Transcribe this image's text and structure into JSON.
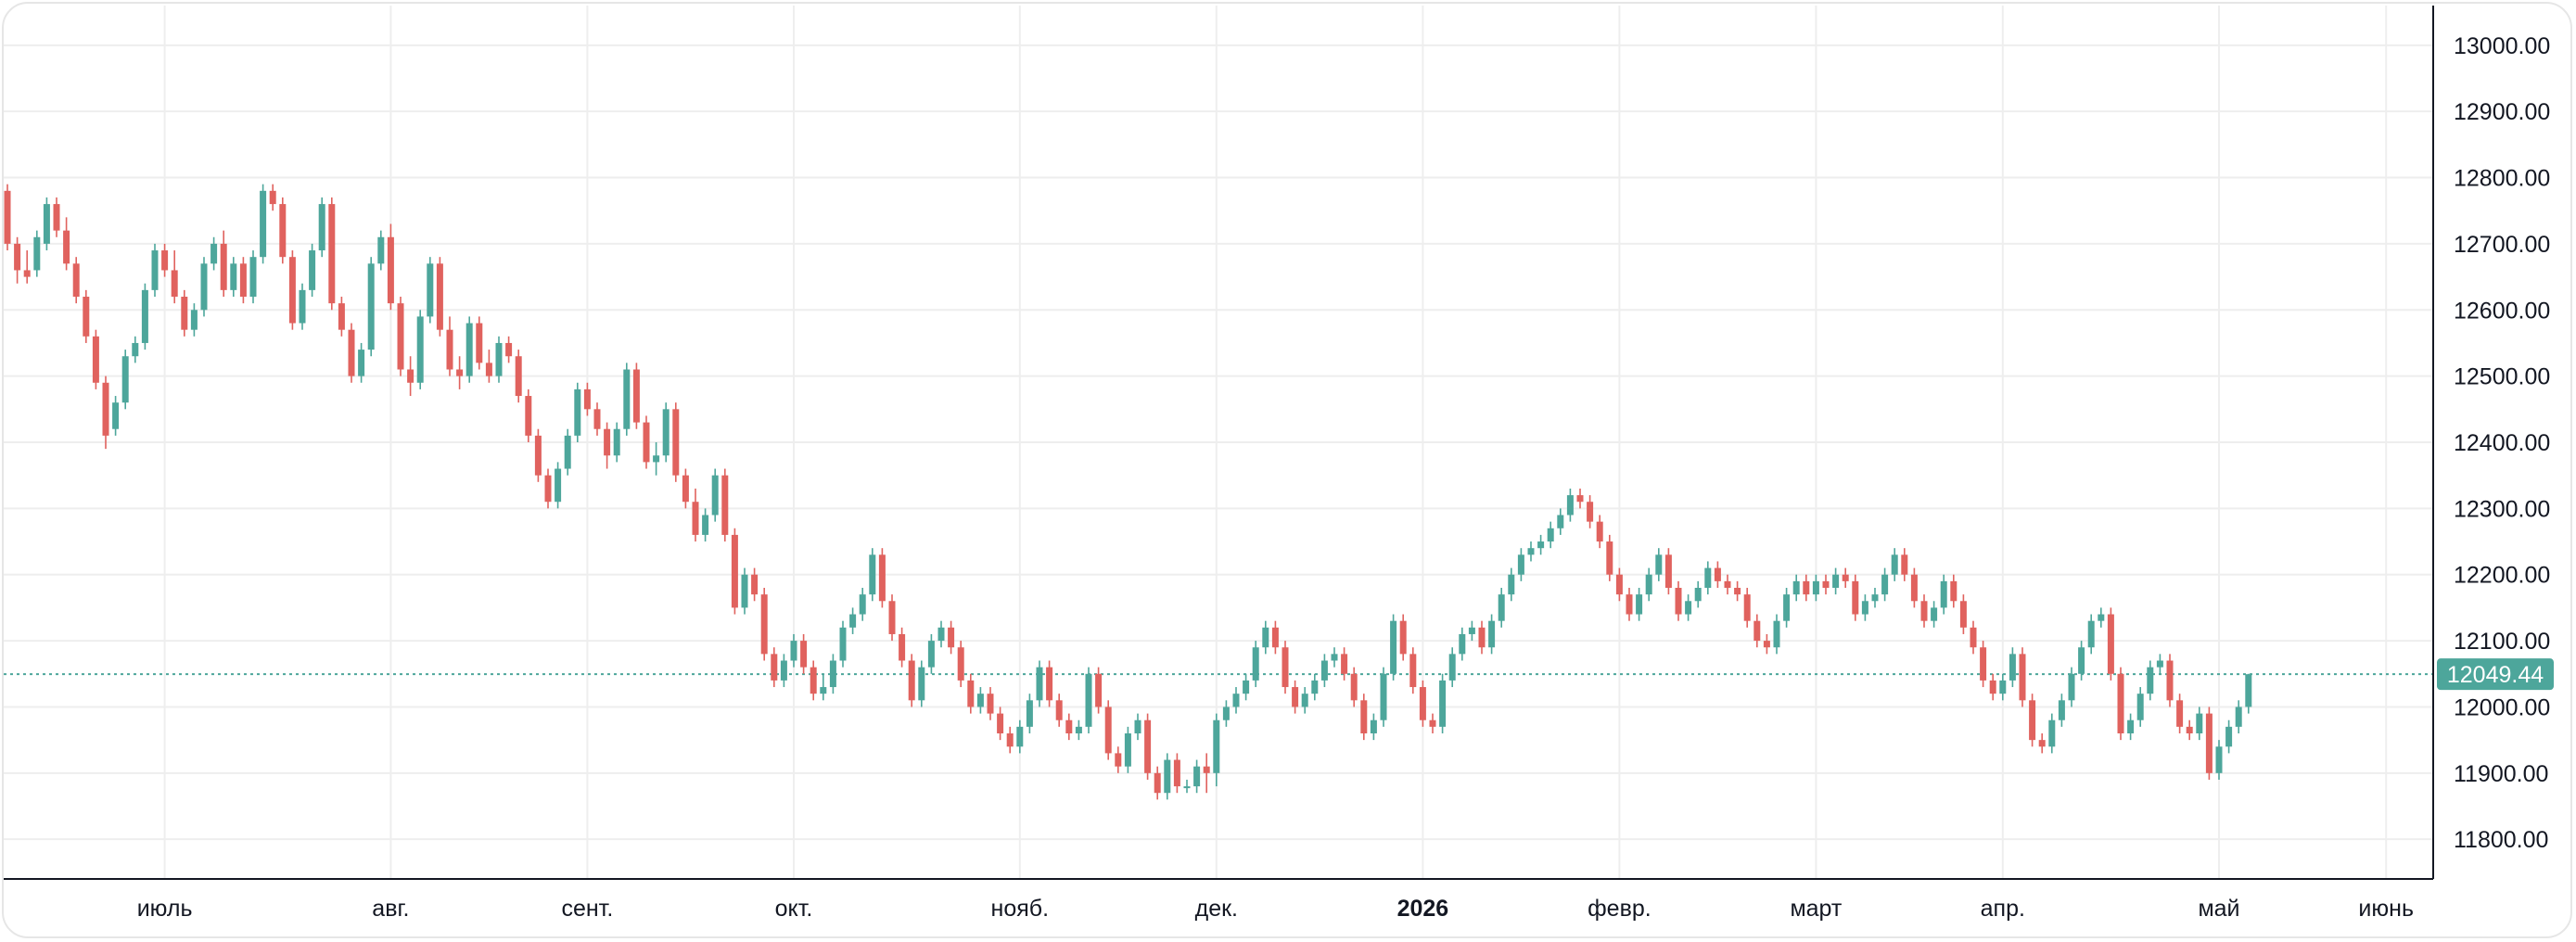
{
  "chart_data": {
    "type": "candlestick",
    "ylim": [
      11740,
      13060
    ],
    "y_ticks": [
      "13000.00",
      "12900.00",
      "12800.00",
      "12700.00",
      "12600.00",
      "12500.00",
      "12400.00",
      "12300.00",
      "12200.00",
      "12100.00",
      "12000.00",
      "11900.00",
      "11800.00"
    ],
    "y_tick_values": [
      13000,
      12900,
      12800,
      12700,
      12600,
      12500,
      12400,
      12300,
      12200,
      12100,
      12000,
      11900,
      11800
    ],
    "x_tick_labels": [
      "июль",
      "авг.",
      "сент.",
      "окт.",
      "нояб.",
      "дек.",
      "2026",
      "февр.",
      "март",
      "апр.",
      "май",
      "июнь"
    ],
    "x_tick_index": [
      16,
      39,
      59,
      80,
      103,
      123,
      144,
      164,
      184,
      203,
      225,
      242
    ],
    "bold_tick": "2026",
    "last_price": 12049.44,
    "last_price_label": "12049.44",
    "grid": true,
    "colors": {
      "up": "#4da69b",
      "down": "#e0625e",
      "grid": "#eeeeee",
      "axis": "#131722",
      "price_line": "#4da69b"
    },
    "ohlc": [
      [
        12780,
        12790,
        12690,
        12700
      ],
      [
        12700,
        12710,
        12640,
        12660
      ],
      [
        12660,
        12690,
        12640,
        12650
      ],
      [
        12660,
        12720,
        12650,
        12710
      ],
      [
        12700,
        12770,
        12690,
        12760
      ],
      [
        12760,
        12770,
        12710,
        12720
      ],
      [
        12720,
        12740,
        12660,
        12670
      ],
      [
        12670,
        12680,
        12610,
        12620
      ],
      [
        12620,
        12630,
        12550,
        12560
      ],
      [
        12560,
        12570,
        12480,
        12490
      ],
      [
        12490,
        12500,
        12390,
        12410
      ],
      [
        12420,
        12470,
        12410,
        12460
      ],
      [
        12460,
        12540,
        12450,
        12530
      ],
      [
        12530,
        12560,
        12520,
        12550
      ],
      [
        12550,
        12640,
        12540,
        12630
      ],
      [
        12630,
        12700,
        12620,
        12690
      ],
      [
        12690,
        12700,
        12650,
        12660
      ],
      [
        12660,
        12690,
        12610,
        12620
      ],
      [
        12620,
        12630,
        12560,
        12570
      ],
      [
        12570,
        12610,
        12560,
        12600
      ],
      [
        12600,
        12680,
        12590,
        12670
      ],
      [
        12670,
        12710,
        12660,
        12700
      ],
      [
        12700,
        12720,
        12620,
        12630
      ],
      [
        12630,
        12680,
        12620,
        12670
      ],
      [
        12670,
        12680,
        12610,
        12620
      ],
      [
        12620,
        12690,
        12610,
        12680
      ],
      [
        12680,
        12790,
        12670,
        12780
      ],
      [
        12780,
        12790,
        12750,
        12760
      ],
      [
        12760,
        12770,
        12670,
        12680
      ],
      [
        12680,
        12690,
        12570,
        12580
      ],
      [
        12580,
        12640,
        12570,
        12630
      ],
      [
        12630,
        12700,
        12620,
        12690
      ],
      [
        12690,
        12770,
        12680,
        12760
      ],
      [
        12760,
        12770,
        12600,
        12610
      ],
      [
        12610,
        12620,
        12560,
        12570
      ],
      [
        12570,
        12580,
        12490,
        12500
      ],
      [
        12500,
        12550,
        12490,
        12540
      ],
      [
        12540,
        12680,
        12530,
        12670
      ],
      [
        12670,
        12720,
        12660,
        12710
      ],
      [
        12710,
        12730,
        12600,
        12610
      ],
      [
        12610,
        12620,
        12500,
        12510
      ],
      [
        12510,
        12530,
        12470,
        12490
      ],
      [
        12490,
        12600,
        12480,
        12590
      ],
      [
        12590,
        12680,
        12580,
        12670
      ],
      [
        12670,
        12680,
        12560,
        12570
      ],
      [
        12570,
        12590,
        12500,
        12510
      ],
      [
        12510,
        12530,
        12480,
        12500
      ],
      [
        12500,
        12590,
        12490,
        12580
      ],
      [
        12580,
        12590,
        12510,
        12520
      ],
      [
        12520,
        12540,
        12490,
        12500
      ],
      [
        12500,
        12560,
        12490,
        12550
      ],
      [
        12550,
        12560,
        12520,
        12530
      ],
      [
        12530,
        12540,
        12460,
        12470
      ],
      [
        12470,
        12480,
        12400,
        12410
      ],
      [
        12410,
        12420,
        12340,
        12350
      ],
      [
        12350,
        12360,
        12300,
        12310
      ],
      [
        12310,
        12370,
        12300,
        12360
      ],
      [
        12360,
        12420,
        12350,
        12410
      ],
      [
        12410,
        12490,
        12400,
        12480
      ],
      [
        12480,
        12490,
        12440,
        12450
      ],
      [
        12450,
        12460,
        12410,
        12420
      ],
      [
        12420,
        12430,
        12360,
        12380
      ],
      [
        12380,
        12430,
        12370,
        12420
      ],
      [
        12420,
        12520,
        12410,
        12510
      ],
      [
        12510,
        12520,
        12420,
        12430
      ],
      [
        12430,
        12440,
        12360,
        12370
      ],
      [
        12370,
        12400,
        12350,
        12380
      ],
      [
        12380,
        12460,
        12370,
        12450
      ],
      [
        12450,
        12460,
        12340,
        12350
      ],
      [
        12350,
        12360,
        12300,
        12310
      ],
      [
        12310,
        12330,
        12250,
        12260
      ],
      [
        12260,
        12300,
        12250,
        12290
      ],
      [
        12290,
        12360,
        12280,
        12350
      ],
      [
        12350,
        12360,
        12250,
        12260
      ],
      [
        12260,
        12270,
        12140,
        12150
      ],
      [
        12150,
        12210,
        12140,
        12200
      ],
      [
        12200,
        12210,
        12160,
        12170
      ],
      [
        12170,
        12180,
        12070,
        12080
      ],
      [
        12080,
        12090,
        12030,
        12040
      ],
      [
        12040,
        12080,
        12030,
        12070
      ],
      [
        12070,
        12110,
        12060,
        12100
      ],
      [
        12100,
        12110,
        12050,
        12060
      ],
      [
        12060,
        12070,
        12010,
        12020
      ],
      [
        12020,
        12050,
        12010,
        12030
      ],
      [
        12030,
        12080,
        12020,
        12070
      ],
      [
        12070,
        12130,
        12060,
        12120
      ],
      [
        12120,
        12150,
        12110,
        12140
      ],
      [
        12140,
        12180,
        12130,
        12170
      ],
      [
        12170,
        12240,
        12160,
        12230
      ],
      [
        12230,
        12240,
        12150,
        12160
      ],
      [
        12160,
        12170,
        12100,
        12110
      ],
      [
        12110,
        12120,
        12060,
        12070
      ],
      [
        12070,
        12080,
        12000,
        12010
      ],
      [
        12010,
        12070,
        12000,
        12060
      ],
      [
        12060,
        12110,
        12050,
        12100
      ],
      [
        12100,
        12130,
        12090,
        12120
      ],
      [
        12120,
        12130,
        12080,
        12090
      ],
      [
        12090,
        12100,
        12030,
        12040
      ],
      [
        12040,
        12050,
        11990,
        12000
      ],
      [
        12000,
        12030,
        11990,
        12020
      ],
      [
        12020,
        12030,
        11980,
        11990
      ],
      [
        11990,
        12000,
        11950,
        11960
      ],
      [
        11960,
        11970,
        11930,
        11940
      ],
      [
        11940,
        11980,
        11930,
        11970
      ],
      [
        11970,
        12020,
        11960,
        12010
      ],
      [
        12010,
        12070,
        12000,
        12060
      ],
      [
        12060,
        12070,
        12000,
        12010
      ],
      [
        12010,
        12020,
        11970,
        11980
      ],
      [
        11980,
        11990,
        11950,
        11960
      ],
      [
        11960,
        11980,
        11950,
        11970
      ],
      [
        11970,
        12060,
        11960,
        12050
      ],
      [
        12050,
        12060,
        11990,
        12000
      ],
      [
        12000,
        12010,
        11920,
        11930
      ],
      [
        11930,
        11940,
        11900,
        11910
      ],
      [
        11910,
        11970,
        11900,
        11960
      ],
      [
        11960,
        11990,
        11950,
        11980
      ],
      [
        11980,
        11990,
        11890,
        11900
      ],
      [
        11900,
        11910,
        11860,
        11870
      ],
      [
        11870,
        11930,
        11860,
        11920
      ],
      [
        11920,
        11930,
        11870,
        11880
      ],
      [
        11880,
        11890,
        11870,
        11880
      ],
      [
        11880,
        11920,
        11870,
        11910
      ],
      [
        11910,
        11930,
        11870,
        11900
      ],
      [
        11900,
        11990,
        11880,
        11980
      ],
      [
        11980,
        12010,
        11970,
        12000
      ],
      [
        12000,
        12030,
        11990,
        12020
      ],
      [
        12020,
        12050,
        12010,
        12040
      ],
      [
        12040,
        12100,
        12030,
        12090
      ],
      [
        12090,
        12130,
        12080,
        12120
      ],
      [
        12120,
        12130,
        12080,
        12090
      ],
      [
        12090,
        12100,
        12020,
        12030
      ],
      [
        12030,
        12040,
        11990,
        12000
      ],
      [
        12000,
        12030,
        11990,
        12020
      ],
      [
        12020,
        12050,
        12010,
        12040
      ],
      [
        12040,
        12080,
        12030,
        12070
      ],
      [
        12070,
        12090,
        12060,
        12080
      ],
      [
        12080,
        12090,
        12040,
        12050
      ],
      [
        12050,
        12060,
        12000,
        12010
      ],
      [
        12010,
        12020,
        11950,
        11960
      ],
      [
        11960,
        11990,
        11950,
        11980
      ],
      [
        11980,
        12060,
        11970,
        12050
      ],
      [
        12050,
        12140,
        12040,
        12130
      ],
      [
        12130,
        12140,
        12070,
        12080
      ],
      [
        12080,
        12090,
        12020,
        12030
      ],
      [
        12030,
        12040,
        11970,
        11980
      ],
      [
        11980,
        11990,
        11960,
        11970
      ],
      [
        11970,
        12050,
        11960,
        12040
      ],
      [
        12040,
        12090,
        12030,
        12080
      ],
      [
        12080,
        12120,
        12070,
        12110
      ],
      [
        12110,
        12130,
        12100,
        12120
      ],
      [
        12120,
        12130,
        12080,
        12090
      ],
      [
        12090,
        12140,
        12080,
        12130
      ],
      [
        12130,
        12180,
        12120,
        12170
      ],
      [
        12170,
        12210,
        12160,
        12200
      ],
      [
        12200,
        12240,
        12190,
        12230
      ],
      [
        12230,
        12250,
        12220,
        12240
      ],
      [
        12240,
        12260,
        12230,
        12250
      ],
      [
        12250,
        12280,
        12240,
        12270
      ],
      [
        12270,
        12300,
        12260,
        12290
      ],
      [
        12290,
        12330,
        12280,
        12320
      ],
      [
        12320,
        12330,
        12300,
        12310
      ],
      [
        12310,
        12320,
        12270,
        12280
      ],
      [
        12280,
        12290,
        12240,
        12250
      ],
      [
        12250,
        12260,
        12190,
        12200
      ],
      [
        12200,
        12210,
        12160,
        12170
      ],
      [
        12170,
        12180,
        12130,
        12140
      ],
      [
        12140,
        12180,
        12130,
        12170
      ],
      [
        12170,
        12210,
        12160,
        12200
      ],
      [
        12200,
        12240,
        12190,
        12230
      ],
      [
        12230,
        12240,
        12170,
        12180
      ],
      [
        12180,
        12190,
        12130,
        12140
      ],
      [
        12140,
        12170,
        12130,
        12160
      ],
      [
        12160,
        12190,
        12150,
        12180
      ],
      [
        12180,
        12220,
        12170,
        12210
      ],
      [
        12210,
        12220,
        12180,
        12190
      ],
      [
        12190,
        12200,
        12170,
        12180
      ],
      [
        12180,
        12190,
        12160,
        12170
      ],
      [
        12170,
        12180,
        12120,
        12130
      ],
      [
        12130,
        12140,
        12090,
        12100
      ],
      [
        12100,
        12110,
        12080,
        12090
      ],
      [
        12090,
        12140,
        12080,
        12130
      ],
      [
        12130,
        12180,
        12120,
        12170
      ],
      [
        12170,
        12200,
        12160,
        12190
      ],
      [
        12190,
        12200,
        12160,
        12170
      ],
      [
        12170,
        12200,
        12160,
        12190
      ],
      [
        12190,
        12200,
        12170,
        12180
      ],
      [
        12180,
        12210,
        12170,
        12200
      ],
      [
        12200,
        12210,
        12180,
        12190
      ],
      [
        12190,
        12200,
        12130,
        12140
      ],
      [
        12140,
        12170,
        12130,
        12160
      ],
      [
        12160,
        12180,
        12150,
        12170
      ],
      [
        12170,
        12210,
        12160,
        12200
      ],
      [
        12200,
        12240,
        12190,
        12230
      ],
      [
        12230,
        12240,
        12190,
        12200
      ],
      [
        12200,
        12210,
        12150,
        12160
      ],
      [
        12160,
        12170,
        12120,
        12130
      ],
      [
        12130,
        12160,
        12120,
        12150
      ],
      [
        12150,
        12200,
        12140,
        12190
      ],
      [
        12190,
        12200,
        12150,
        12160
      ],
      [
        12160,
        12170,
        12110,
        12120
      ],
      [
        12120,
        12130,
        12080,
        12090
      ],
      [
        12090,
        12100,
        12030,
        12040
      ],
      [
        12040,
        12050,
        12010,
        12020
      ],
      [
        12020,
        12050,
        12010,
        12040
      ],
      [
        12040,
        12090,
        12030,
        12080
      ],
      [
        12080,
        12090,
        12000,
        12010
      ],
      [
        12010,
        12020,
        11940,
        11950
      ],
      [
        11950,
        11960,
        11930,
        11940
      ],
      [
        11940,
        11990,
        11930,
        11980
      ],
      [
        11980,
        12020,
        11970,
        12010
      ],
      [
        12010,
        12060,
        12000,
        12050
      ],
      [
        12050,
        12100,
        12040,
        12090
      ],
      [
        12090,
        12140,
        12080,
        12130
      ],
      [
        12130,
        12150,
        12120,
        12140
      ],
      [
        12140,
        12150,
        12040,
        12050
      ],
      [
        12050,
        12060,
        11950,
        11960
      ],
      [
        11960,
        11990,
        11950,
        11980
      ],
      [
        11980,
        12030,
        11970,
        12020
      ],
      [
        12020,
        12070,
        12010,
        12060
      ],
      [
        12060,
        12080,
        12050,
        12070
      ],
      [
        12070,
        12080,
        12000,
        12010
      ],
      [
        12010,
        12020,
        11960,
        11970
      ],
      [
        11970,
        11980,
        11950,
        11960
      ],
      [
        11960,
        12000,
        11950,
        11990
      ],
      [
        11990,
        12000,
        11890,
        11900
      ],
      [
        11900,
        11950,
        11890,
        11940
      ],
      [
        11940,
        11980,
        11930,
        11970
      ],
      [
        11970,
        12010,
        11960,
        12000
      ],
      [
        12000,
        12050,
        11990,
        12049.44
      ]
    ]
  }
}
